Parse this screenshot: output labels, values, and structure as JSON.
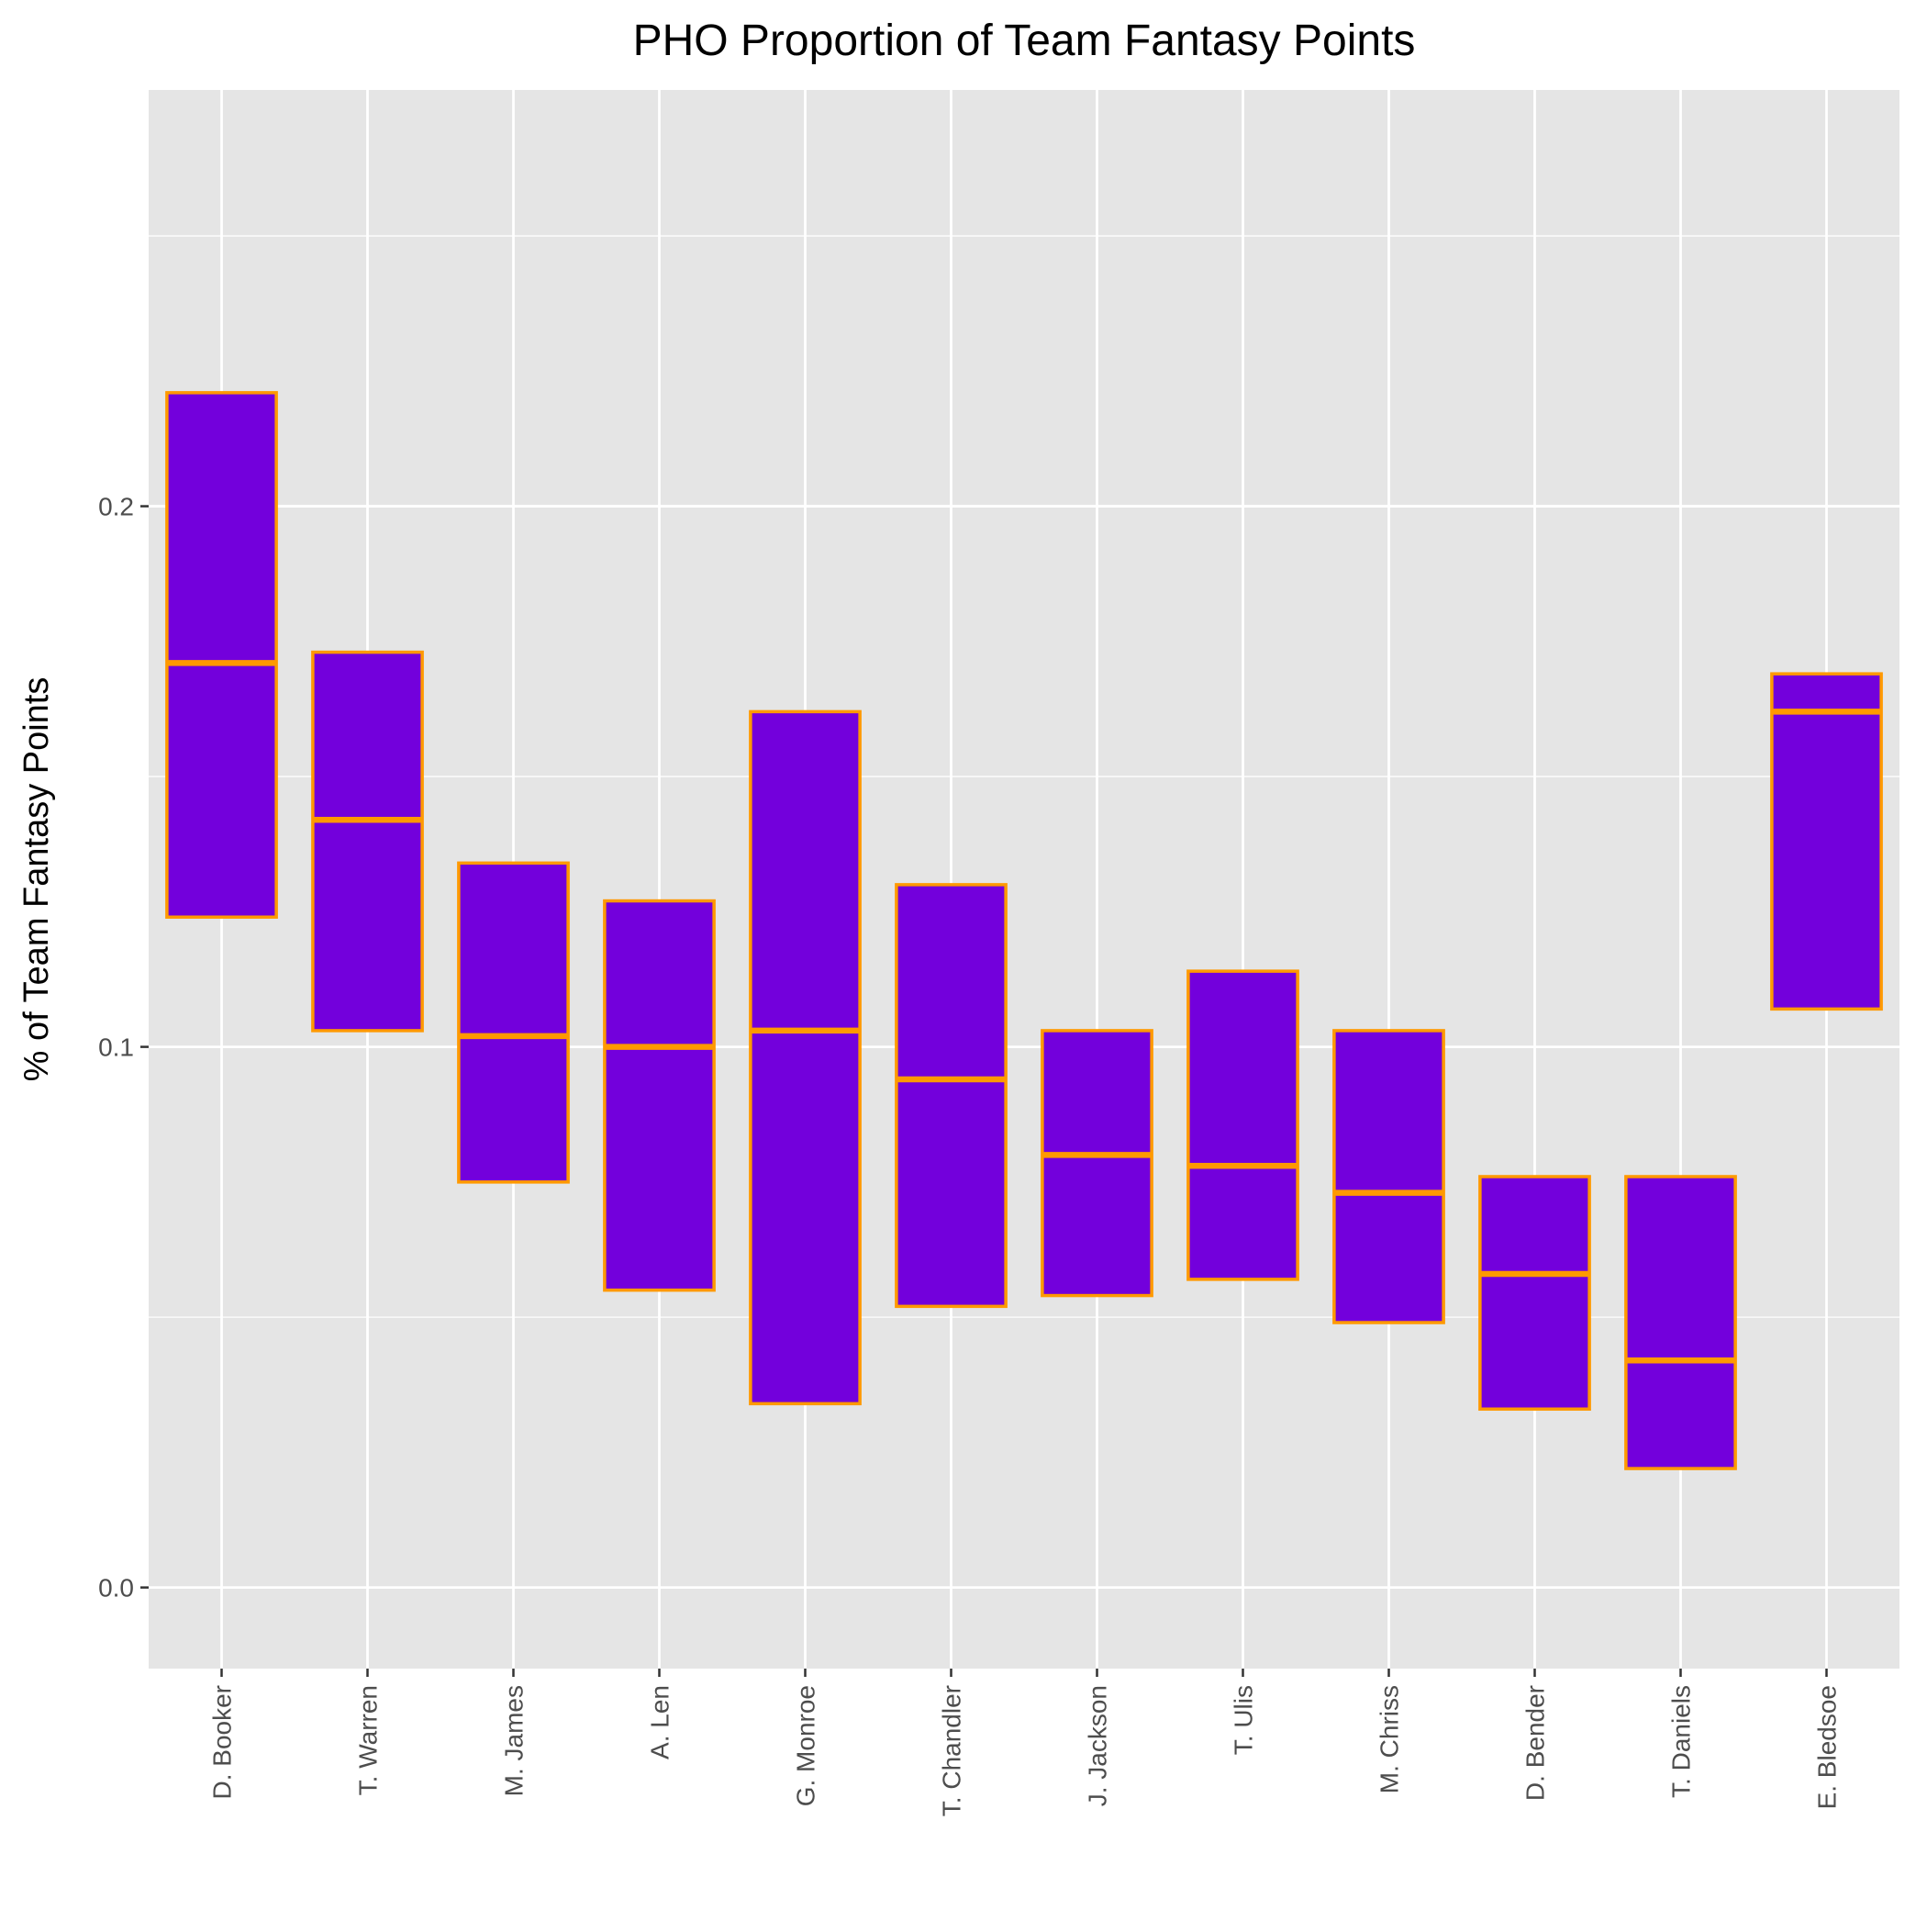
{
  "chart_data": {
    "type": "box",
    "title": "PHO Proportion of Team Fantasy Points",
    "xlabel": "",
    "ylabel": "% of Team Fantasy Points",
    "ylim": [
      -0.015,
      0.277
    ],
    "y_ticks": [
      {
        "value": 0.0,
        "label": "0.0"
      },
      {
        "value": 0.1,
        "label": "0.1"
      },
      {
        "value": 0.2,
        "label": "0.2"
      }
    ],
    "grid": true,
    "categories": [
      "D. Booker",
      "T. Warren",
      "M. James",
      "A. Len",
      "G. Monroe",
      "T. Chandler",
      "J. Jackson",
      "T. Ulis",
      "M. Chriss",
      "D. Bender",
      "T. Daniels",
      "E. Bledsoe"
    ],
    "boxes": [
      {
        "lower": 0.124,
        "median": 0.171,
        "upper": 0.221
      },
      {
        "lower": 0.103,
        "median": 0.142,
        "upper": 0.173
      },
      {
        "lower": 0.075,
        "median": 0.102,
        "upper": 0.134
      },
      {
        "lower": 0.055,
        "median": 0.1,
        "upper": 0.127
      },
      {
        "lower": 0.034,
        "median": 0.103,
        "upper": 0.162
      },
      {
        "lower": 0.052,
        "median": 0.094,
        "upper": 0.13
      },
      {
        "lower": 0.054,
        "median": 0.08,
        "upper": 0.103
      },
      {
        "lower": 0.057,
        "median": 0.078,
        "upper": 0.114
      },
      {
        "lower": 0.049,
        "median": 0.073,
        "upper": 0.103
      },
      {
        "lower": 0.033,
        "median": 0.058,
        "upper": 0.076
      },
      {
        "lower": 0.022,
        "median": 0.042,
        "upper": 0.076
      },
      {
        "lower": 0.107,
        "median": 0.162,
        "upper": 0.169
      }
    ]
  },
  "colors": {
    "panel_background": "#e5e5e5",
    "grid": "#ffffff",
    "box_fill": "#7300dc",
    "box_outline": "#ff9900",
    "text": "#000000",
    "tick_text": "#4d4d4d"
  }
}
